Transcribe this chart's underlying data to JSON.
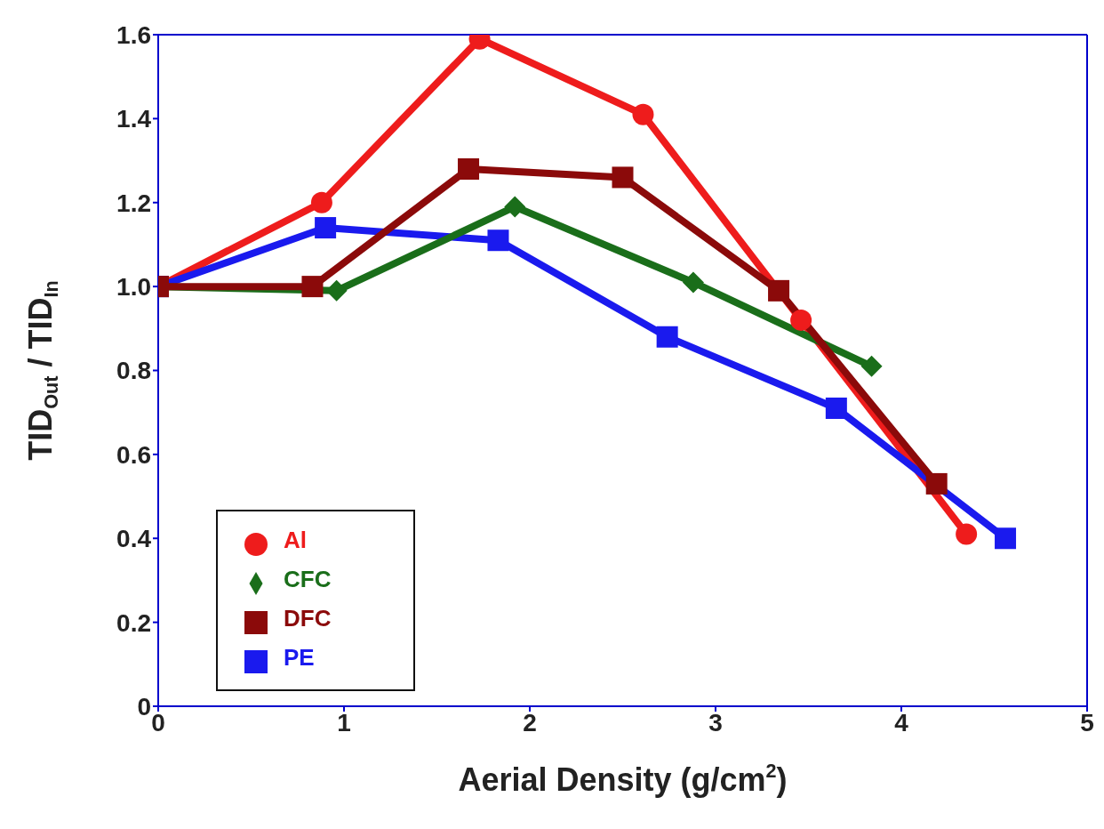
{
  "chart_data": {
    "type": "line",
    "xlabel": "Aerial Density (g/cm$^{2}$)",
    "ylabel": "TID$_{Out}$ / TID$_{In}$",
    "xlim": [
      0,
      5
    ],
    "xticks": [
      0,
      1,
      2,
      3,
      4,
      5
    ],
    "ylim": [
      0,
      1.6
    ],
    "yticks": [
      0,
      0.2,
      0.4,
      0.6,
      0.8,
      {
        "value": 1,
        "label": "1.0"
      },
      1.2,
      1.4,
      1.6
    ],
    "grid": false,
    "legend": "bottom left",
    "line_style": "solid",
    "series": [
      {
        "name": "Al",
        "color": "#ee1c1c",
        "marker": "circle",
        "x": [
          0,
          0.88,
          1.73,
          2.61,
          3.46,
          4.35
        ],
        "values": [
          1.0,
          1.2,
          1.59,
          1.41,
          0.92,
          0.41
        ]
      },
      {
        "name": "PE",
        "color": "#1a1aee",
        "marker": "square",
        "x": [
          0,
          0.9,
          1.83,
          2.74,
          3.65,
          4.56
        ],
        "values": [
          1.0,
          1.14,
          1.11,
          0.88,
          0.71,
          0.4
        ]
      },
      {
        "name": "CFC",
        "color": "#1a6e1a",
        "marker": "diamond",
        "x": [
          0,
          0.96,
          1.92,
          2.88,
          3.84
        ],
        "values": [
          1.0,
          0.99,
          1.19,
          1.01,
          0.81
        ]
      },
      {
        "name": "DFC",
        "color": "#8b0a0a",
        "marker": "square",
        "x": [
          0,
          0.83,
          1.67,
          2.5,
          3.34,
          4.19
        ],
        "values": [
          1.0,
          1.0,
          1.28,
          1.26,
          0.99,
          0.53
        ]
      }
    ]
  }
}
